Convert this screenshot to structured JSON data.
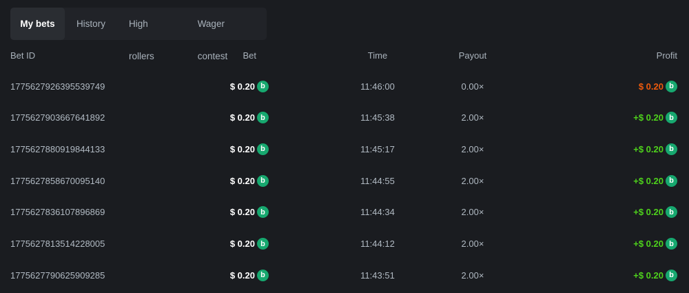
{
  "tabs": [
    {
      "label": "My bets",
      "active": true
    },
    {
      "label": "History"
    },
    {
      "label": "High rollers"
    },
    {
      "label": "Wager contest"
    }
  ],
  "columns": {
    "bet_id": "Bet ID",
    "bet": "Bet",
    "time": "Time",
    "payout": "Payout",
    "profit": "Profit"
  },
  "colors": {
    "loss": "#ee5a0c",
    "win": "#4ed21c",
    "coin": "#17a86f"
  },
  "coin_icon": "bc-coin-icon",
  "rows": [
    {
      "id": "1775627926395539749",
      "bet": "$ 0.20",
      "time": "11:46:00",
      "payout": "0.00×",
      "profit": "$ 0.20",
      "result": "loss"
    },
    {
      "id": "1775627903667641892",
      "bet": "$ 0.20",
      "time": "11:45:38",
      "payout": "2.00×",
      "profit": "+$ 0.20",
      "result": "win"
    },
    {
      "id": "1775627880919844133",
      "bet": "$ 0.20",
      "time": "11:45:17",
      "payout": "2.00×",
      "profit": "+$ 0.20",
      "result": "win"
    },
    {
      "id": "1775627858670095140",
      "bet": "$ 0.20",
      "time": "11:44:55",
      "payout": "2.00×",
      "profit": "+$ 0.20",
      "result": "win"
    },
    {
      "id": "1775627836107896869",
      "bet": "$ 0.20",
      "time": "11:44:34",
      "payout": "2.00×",
      "profit": "+$ 0.20",
      "result": "win"
    },
    {
      "id": "1775627813514228005",
      "bet": "$ 0.20",
      "time": "11:44:12",
      "payout": "2.00×",
      "profit": "+$ 0.20",
      "result": "win"
    },
    {
      "id": "1775627790625909285",
      "bet": "$ 0.20",
      "time": "11:43:51",
      "payout": "2.00×",
      "profit": "+$ 0.20",
      "result": "win"
    }
  ]
}
